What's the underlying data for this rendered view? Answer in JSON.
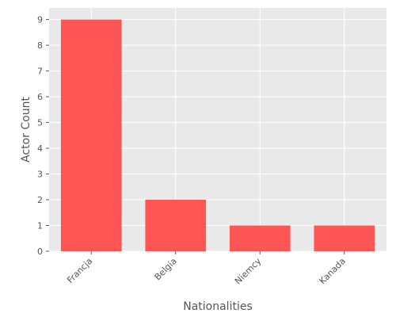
{
  "chart_data": {
    "type": "bar",
    "categories": [
      "Francja",
      "Belgia",
      "Niemcy",
      "Kanada"
    ],
    "values": [
      9,
      2,
      1,
      1
    ],
    "title": "",
    "xlabel": "Nationalities",
    "ylabel": "Actor Count",
    "ylim": [
      0,
      9.45
    ],
    "yticks": [
      0,
      1,
      2,
      3,
      4,
      5,
      6,
      7,
      8,
      9
    ],
    "grid": true,
    "style": "ggplot",
    "colors": {
      "bar": "#ff5555",
      "plot_background": "#e9e9e9",
      "grid": "#ffffff",
      "text": "#555555"
    }
  }
}
